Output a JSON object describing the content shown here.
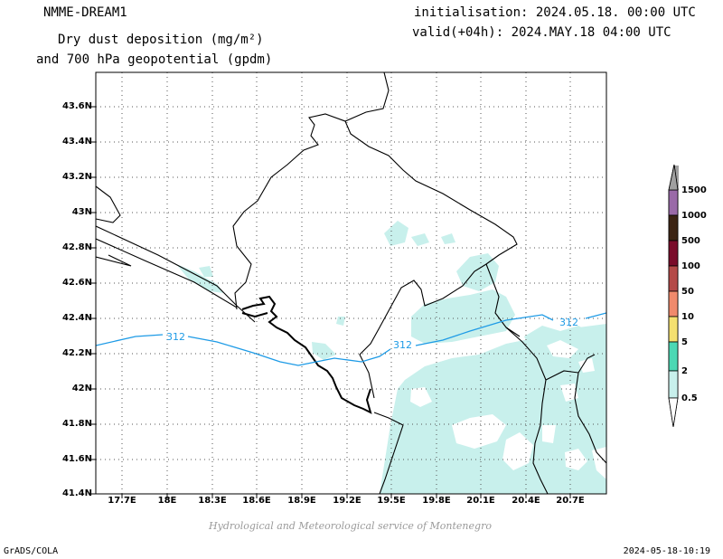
{
  "header": {
    "model": "NMME-DREAM1",
    "title_line1": "Dry dust deposition (mg/m²)",
    "title_line2": "and 700 hPa geopotential (gpdm)",
    "init": "initialisation: 2024.05.18. 00:00 UTC",
    "valid": "valid(+04h): 2024.MAY.18 04:00 UTC"
  },
  "map": {
    "lat_labels": [
      "43.6N",
      "43.4N",
      "43.2N",
      "43N",
      "42.8N",
      "42.6N",
      "42.4N",
      "42.2N",
      "42N",
      "41.8N",
      "41.6N",
      "41.4N"
    ],
    "lon_labels": [
      "17.7E",
      "18E",
      "18.3E",
      "18.6E",
      "18.9E",
      "19.2E",
      "19.5E",
      "19.8E",
      "20.1E",
      "20.4E",
      "20.7E"
    ],
    "contour_labels": [
      "312",
      "312",
      "312"
    ],
    "colors": {
      "dust_low": "#c8f0ec",
      "contour": "#1e9be6",
      "border": "#000000",
      "grid": "#555555"
    }
  },
  "legend": {
    "labels": [
      "1500",
      "1000",
      "500",
      "100",
      "50",
      "10",
      "5",
      "2",
      "0.5"
    ],
    "colors": [
      "#a0a0a0",
      "#9a6aa8",
      "#3c2414",
      "#7a0c2a",
      "#b44a48",
      "#f08a6c",
      "#f4e070",
      "#4cd8b4",
      "#c8f0ec"
    ]
  },
  "footer": {
    "credit": "Hydrological and Meteorological service of Montenegro",
    "left": "GrADS/COLA",
    "right": "2024-05-18-10:19"
  }
}
